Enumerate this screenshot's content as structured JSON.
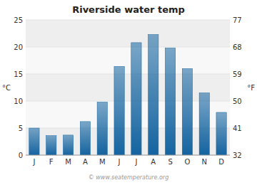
{
  "chart_data": {
    "type": "bar",
    "title": "Riverside water temp",
    "categories": [
      "J",
      "F",
      "M",
      "A",
      "M",
      "J",
      "J",
      "A",
      "S",
      "O",
      "N",
      "D"
    ],
    "values": [
      5.0,
      3.6,
      3.7,
      6.2,
      9.8,
      16.4,
      20.8,
      22.3,
      19.8,
      16.0,
      11.5,
      7.9
    ],
    "color": "#1464a0",
    "ylabel": "°C",
    "y2label": "°F",
    "ylim": [
      0,
      25
    ],
    "yticks": [
      0,
      5,
      10,
      15,
      20,
      25
    ],
    "y2lim": [
      32,
      77
    ],
    "y2ticks": [
      32,
      41,
      50,
      59,
      68,
      77
    ],
    "grid": true,
    "annotations": [
      "© www.seatemperature.org"
    ]
  }
}
